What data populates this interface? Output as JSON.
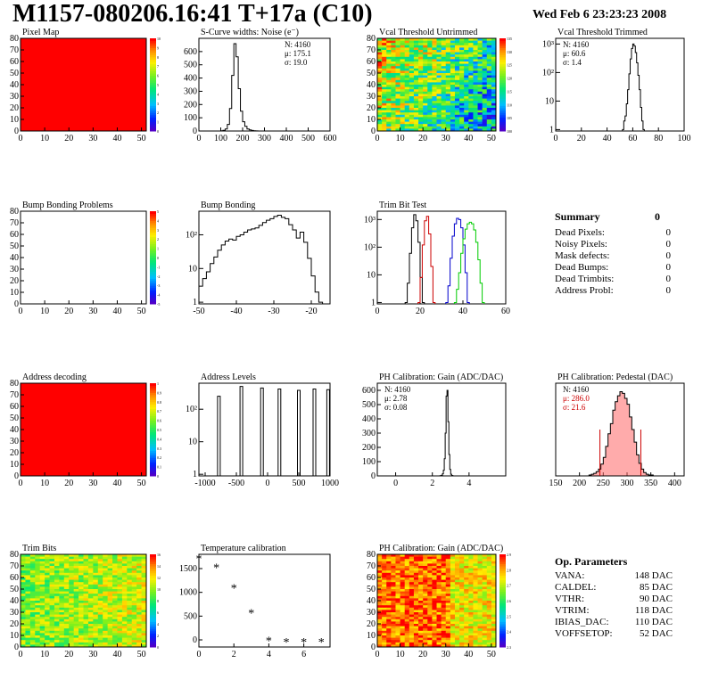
{
  "header": {
    "title": "M1157-080206.16:41 T+17a (C10)",
    "date": "Wed Feb  6 23:23:23 2008"
  },
  "panels": {
    "pixel_map": {
      "title": "Pixel Map"
    },
    "scurve": {
      "title": "S-Curve widths: Noise (e⁻)",
      "stats": [
        "N: 4160",
        "μ: 175.1",
        "σ: 19.0"
      ]
    },
    "vcal_untrimmed": {
      "title": "Vcal Threshold Untrimmed"
    },
    "vcal_trimmed": {
      "title": "Vcal Threshold Trimmed",
      "stats": [
        "N: 4160",
        "μ: 60.6",
        "σ:  1.4"
      ]
    },
    "bump_problems": {
      "title": "Bump Bonding Problems"
    },
    "bump_bonding": {
      "title": "Bump Bonding"
    },
    "trim_bit_test": {
      "title": "Trim Bit Test"
    },
    "address_decoding": {
      "title": "Address decoding"
    },
    "address_levels": {
      "title": "Address Levels"
    },
    "ph_gain": {
      "title": "PH Calibration: Gain (ADC/DAC)",
      "stats": [
        "N: 4160",
        "μ: 2.78",
        "σ: 0.08"
      ]
    },
    "ph_pedestal": {
      "title": "PH Calibration: Pedestal (DAC)",
      "stats": [
        "N: 4160",
        "μ: 286.0",
        "σ: 21.6"
      ]
    },
    "trim_bits": {
      "title": "Trim Bits"
    },
    "temperature": {
      "title": "Temperature calibration"
    },
    "ph_gain_map": {
      "title": "PH Calibration: Gain (ADC/DAC)"
    }
  },
  "summary": {
    "title": "Summary",
    "total": "0",
    "rows": [
      {
        "label": "Dead Pixels:",
        "value": "0"
      },
      {
        "label": "Noisy Pixels:",
        "value": "0"
      },
      {
        "label": "Mask defects:",
        "value": "0"
      },
      {
        "label": "Dead Bumps:",
        "value": "0"
      },
      {
        "label": "Dead Trimbits:",
        "value": "0"
      },
      {
        "label": "Address Probl:",
        "value": "0"
      }
    ]
  },
  "op_parameters": {
    "title": "Op. Parameters",
    "rows": [
      {
        "label": "VANA:",
        "value": "148 DAC"
      },
      {
        "label": "CALDEL:",
        "value": "85 DAC"
      },
      {
        "label": "VTHR:",
        "value": "90 DAC"
      },
      {
        "label": "VTRIM:",
        "value": "118 DAC"
      },
      {
        "label": "IBIAS_DAC:",
        "value": "110 DAC"
      },
      {
        "label": "VOFFSETOP:",
        "value": "52 DAC"
      }
    ]
  },
  "colors": {
    "map_red": "#ff0000",
    "trim_red": "#cc0000",
    "trim_blue": "#0000cc",
    "trim_green": "#00cc00",
    "pedestal_fill": "#ff6666"
  },
  "chart_data": [
    {
      "id": "pixel_map",
      "type": "heatmap",
      "title": "Pixel Map",
      "xlim": [
        0,
        52
      ],
      "ylim": [
        0,
        80
      ],
      "x_ticks": [
        0,
        10,
        20,
        30,
        40,
        50
      ],
      "y_ticks": [
        0,
        10,
        20,
        30,
        40,
        50,
        60,
        70,
        80
      ],
      "uniform_color": "#ff0000",
      "z_ticks": [
        "0",
        "1",
        "2",
        "3",
        "4",
        "5",
        "6",
        "7",
        "8",
        "9",
        "10"
      ]
    },
    {
      "id": "scurve",
      "type": "histogram",
      "title": "S-Curve widths: Noise (e⁻)",
      "xlim": [
        0,
        600
      ],
      "ylim": [
        0,
        700
      ],
      "x_ticks": [
        0,
        100,
        200,
        300,
        400,
        500,
        600
      ],
      "y_ticks": [
        0,
        100,
        200,
        300,
        400,
        500,
        600
      ],
      "bin_start": 100,
      "bin_width": 10,
      "counts": [
        2,
        5,
        15,
        50,
        170,
        420,
        660,
        560,
        320,
        150,
        70,
        35,
        15,
        8,
        4,
        2,
        1,
        0,
        0,
        0
      ]
    },
    {
      "id": "vcal_untrimmed",
      "type": "heatmap",
      "title": "Vcal Threshold Untrimmed",
      "xlim": [
        0,
        52
      ],
      "ylim": [
        0,
        80
      ],
      "x_ticks": [
        0,
        10,
        20,
        30,
        40,
        50
      ],
      "y_ticks": [
        0,
        10,
        20,
        30,
        40,
        50,
        60,
        70,
        80
      ],
      "z_ticks": [
        "100",
        "105",
        "110",
        "115",
        "120",
        "125",
        "130",
        "135"
      ]
    },
    {
      "id": "vcal_trimmed",
      "type": "histogram",
      "title": "Vcal Threshold Trimmed",
      "log_y": true,
      "xlim": [
        0,
        100
      ],
      "x_ticks": [
        0,
        20,
        40,
        60,
        80,
        100
      ],
      "y_ticks": [
        "1",
        "10",
        "10²",
        "10³"
      ],
      "bin_start": 52,
      "bin_width": 1,
      "counts": [
        1,
        2,
        3,
        8,
        25,
        90,
        300,
        700,
        1000,
        850,
        500,
        220,
        80,
        25,
        6,
        2,
        1
      ]
    },
    {
      "id": "bump_problems",
      "type": "heatmap",
      "title": "Bump Bonding Problems",
      "xlim": [
        0,
        52
      ],
      "ylim": [
        0,
        80
      ],
      "x_ticks": [
        0,
        10,
        20,
        30,
        40,
        50
      ],
      "y_ticks": [
        0,
        10,
        20,
        30,
        40,
        50,
        60,
        70,
        80
      ],
      "z_ticks": [
        "-5",
        "-4",
        "-3",
        "-2",
        "-1",
        "0",
        "1",
        "2",
        "3",
        "4",
        "5"
      ]
    },
    {
      "id": "bump_bonding",
      "type": "histogram",
      "title": "Bump Bonding",
      "log_y": true,
      "xlim": [
        -50,
        -15
      ],
      "x_ticks": [
        -50,
        -40,
        -30,
        -20
      ],
      "y_ticks": [
        "1",
        "10",
        "10²"
      ],
      "bin_start": -50,
      "bin_width": 1,
      "counts": [
        3,
        5,
        8,
        14,
        22,
        35,
        50,
        65,
        75,
        70,
        90,
        100,
        120,
        140,
        150,
        160,
        190,
        230,
        270,
        300,
        350,
        380,
        330,
        300,
        200,
        140,
        80,
        120,
        60,
        20,
        6,
        2,
        1
      ]
    },
    {
      "id": "trim_bit_test",
      "type": "histogram",
      "title": "Trim Bit Test",
      "log_y": true,
      "xlim": [
        0,
        60
      ],
      "x_ticks": [
        0,
        20,
        40,
        60
      ],
      "y_ticks": [
        "1",
        "10",
        "10²",
        "10³"
      ],
      "bin_width": 1,
      "series": [
        {
          "name": "",
          "color": "#000000",
          "bin_start": 13,
          "counts": [
            1,
            5,
            60,
            500,
            1500,
            900,
            150,
            8,
            1
          ]
        },
        {
          "name": "",
          "color": "#cc0000",
          "bin_start": 19,
          "counts": [
            1,
            8,
            120,
            900,
            1300,
            300,
            20,
            1
          ]
        },
        {
          "name": "",
          "color": "#0000cc",
          "bin_start": 32,
          "counts": [
            1,
            4,
            40,
            250,
            700,
            1100,
            1000,
            500,
            120,
            12,
            1
          ]
        },
        {
          "name": "",
          "color": "#00cc00",
          "bin_start": 36,
          "counts": [
            1,
            3,
            12,
            60,
            200,
            450,
            700,
            800,
            700,
            420,
            150,
            35,
            5,
            1
          ]
        }
      ]
    },
    {
      "id": "address_decoding",
      "type": "heatmap",
      "title": "Address decoding",
      "xlim": [
        0,
        52
      ],
      "ylim": [
        0,
        80
      ],
      "x_ticks": [
        0,
        10,
        20,
        30,
        40,
        50
      ],
      "y_ticks": [
        0,
        10,
        20,
        30,
        40,
        50,
        60,
        70,
        80
      ],
      "uniform_color": "#ff0000",
      "z_ticks": [
        "0",
        "0.1",
        "0.2",
        "0.3",
        "0.4",
        "0.5",
        "0.6",
        "0.7",
        "0.8",
        "0.9",
        "1"
      ]
    },
    {
      "id": "address_levels",
      "type": "histogram",
      "title": "Address Levels",
      "log_y": true,
      "xlim": [
        -1100,
        1000
      ],
      "x_ticks": [
        -1000,
        -500,
        0,
        500,
        1000
      ],
      "y_ticks": [
        "1",
        "10",
        "10²"
      ],
      "peaks": [
        {
          "x": -780,
          "value": 250
        },
        {
          "x": -420,
          "value": 500
        },
        {
          "x": -90,
          "value": 450
        },
        {
          "x": 190,
          "value": 420
        },
        {
          "x": 500,
          "value": 380
        },
        {
          "x": 750,
          "value": 420
        },
        {
          "x": 970,
          "value": 400
        }
      ]
    },
    {
      "id": "ph_gain",
      "type": "histogram",
      "title": "PH Calibration: Gain (ADC/DAC)",
      "xlim": [
        -1,
        6
      ],
      "ylim": [
        0,
        650
      ],
      "x_ticks": [
        0,
        2,
        4
      ],
      "y_ticks": [
        0,
        100,
        200,
        300,
        400,
        500,
        600
      ],
      "bin_start": 2.4,
      "bin_width": 0.05,
      "counts": [
        1,
        2,
        5,
        15,
        40,
        120,
        300,
        560,
        600,
        380,
        150,
        45,
        12,
        3,
        1
      ]
    },
    {
      "id": "ph_pedestal",
      "type": "histogram",
      "title": "PH Calibration: Pedestal (DAC)",
      "xlim": [
        150,
        420
      ],
      "ylim": [
        0,
        110
      ],
      "x_ticks": [
        150,
        200,
        250,
        300,
        350,
        400
      ],
      "y_ticks": [
        0,
        20,
        40,
        60,
        80,
        100
      ],
      "bin_start": 220,
      "bin_width": 5,
      "counts": [
        1,
        2,
        3,
        5,
        8,
        14,
        22,
        35,
        50,
        62,
        78,
        88,
        95,
        100,
        98,
        92,
        85,
        70,
        55,
        40,
        25,
        15,
        8,
        4,
        2,
        1,
        1,
        0
      ],
      "fit_range": [
        243,
        329
      ]
    },
    {
      "id": "trim_bits",
      "type": "heatmap",
      "title": "Trim Bits",
      "xlim": [
        0,
        52
      ],
      "ylim": [
        0,
        80
      ],
      "x_ticks": [
        0,
        10,
        20,
        30,
        40,
        50
      ],
      "y_ticks": [
        0,
        10,
        20,
        30,
        40,
        50,
        60,
        70,
        80
      ],
      "z_ticks": [
        "0",
        "2",
        "4",
        "6",
        "8",
        "10",
        "12",
        "14",
        "16"
      ]
    },
    {
      "id": "temperature",
      "type": "scatter",
      "title": "Temperature calibration",
      "xlim": [
        0,
        7.5
      ],
      "ylim": [
        -150,
        1800
      ],
      "x_ticks": [
        0,
        2,
        4,
        6
      ],
      "y_ticks": [
        0,
        500,
        1000,
        1500
      ],
      "x": [
        0,
        1,
        2,
        3,
        4,
        5,
        6,
        7
      ],
      "y": [
        1720,
        1530,
        1100,
        570,
        -10,
        -40,
        -40,
        -40
      ]
    },
    {
      "id": "ph_gain_map",
      "type": "heatmap",
      "title": "PH Calibration: Gain (ADC/DAC)",
      "xlim": [
        0,
        52
      ],
      "ylim": [
        0,
        80
      ],
      "x_ticks": [
        0,
        10,
        20,
        30,
        40,
        50
      ],
      "y_ticks": [
        0,
        10,
        20,
        30,
        40,
        50,
        60,
        70,
        80
      ],
      "z_ticks": [
        "2.3",
        "2.4",
        "2.5",
        "2.6",
        "2.7",
        "2.8",
        "2.9"
      ]
    }
  ]
}
